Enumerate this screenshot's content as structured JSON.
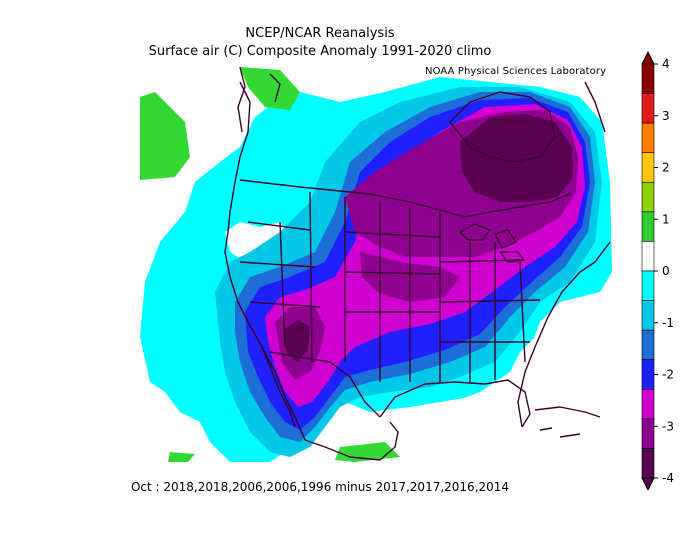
{
  "header": {
    "title_line1": "NCEP/NCAR Reanalysis",
    "title_line2": "Surface air (C) Composite Anomaly 1991-2020 climo",
    "lab": "NOAA Physical Sciences Laboratory"
  },
  "caption": "Oct : 2018,2018,2006,2006,1996 minus 2017,2017,2016,2014",
  "colorbar": {
    "labels": [
      "4",
      "3",
      "2",
      "1",
      "0",
      "-1",
      "-2",
      "-3",
      "-4"
    ],
    "colors": [
      "#8b0000",
      "#e41a1c",
      "#ff7f00",
      "#ffc800",
      "#8fd100",
      "#2ecc2e",
      "#ffffff",
      "#00ffff",
      "#00c8e6",
      "#1e6ed8",
      "#2020ff",
      "#d000d0",
      "#8e008e",
      "#5a0050"
    ]
  },
  "map": {
    "colors": {
      "white": "#ffffff",
      "cyan": "#00ffff",
      "sky": "#00c8e6",
      "steel": "#1e6ed8",
      "blue": "#2020ff",
      "magenta": "#d000d0",
      "purple": "#8e008e",
      "darkpurple": "#5a0050",
      "green": "#33d933",
      "outline": "#3a0030"
    }
  }
}
